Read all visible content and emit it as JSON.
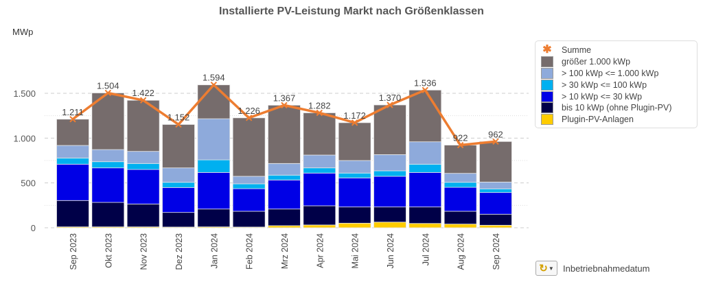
{
  "chart_data": {
    "type": "bar",
    "stacked": true,
    "title": "Installierte PV-Leistung Markt nach Größenklassen",
    "ylabel": "MWp",
    "xlabel": "Inbetriebnahmedatum",
    "ylim": [
      0,
      1700
    ],
    "yticks": [
      0,
      500,
      1000,
      1500
    ],
    "ytick_labels": [
      "0",
      "500",
      "1.000",
      "1.500"
    ],
    "grid": true,
    "legend_position": "right",
    "categories": [
      "Sep 2023",
      "Okt 2023",
      "Nov 2023",
      "Dez 2023",
      "Jan 2024",
      "Feb 2024",
      "Mrz 2024",
      "Apr 2024",
      "Mai 2024",
      "Jun 2024",
      "Jul 2024",
      "Aug 2024",
      "Sep 2024"
    ],
    "series": [
      {
        "name": "Plugin-PV-Anlagen",
        "color": "#ffcc00",
        "values": [
          10,
          10,
          10,
          8,
          10,
          8,
          23,
          31,
          51,
          63,
          48,
          41,
          28
        ]
      },
      {
        "name": "bis 10 kWp (ohne Plugin-PV)",
        "color": "#000048",
        "values": [
          294,
          273,
          255,
          163,
          199,
          176,
          186,
          214,
          181,
          169,
          184,
          143,
          123
        ]
      },
      {
        "name": "> 10 kWp <= 30 kWp",
        "color": "#0000e6",
        "values": [
          405,
          385,
          385,
          278,
          408,
          252,
          324,
          365,
          324,
          342,
          385,
          267,
          242
        ]
      },
      {
        "name": "> 30 kWp <= 100 kWp",
        "color": "#00b0f0",
        "values": [
          69,
          69,
          67,
          58,
          140,
          54,
          54,
          58,
          54,
          61,
          92,
          56,
          41
        ]
      },
      {
        "name": "> 100 kWp <= 1.000 kWp",
        "color": "#8eaadb",
        "values": [
          140,
          135,
          135,
          161,
          459,
          84,
          130,
          143,
          140,
          181,
          250,
          100,
          76
        ]
      },
      {
        "name": "größer 1.000 kWp",
        "color": "#766c6c",
        "values": [
          293,
          632,
          570,
          484,
          378,
          652,
          650,
          471,
          422,
          554,
          577,
          315,
          452
        ]
      }
    ],
    "line": {
      "name": "Summe",
      "color": "#ed7d31",
      "values": [
        1211,
        1504,
        1422,
        1152,
        1594,
        1226,
        1367,
        1282,
        1172,
        1370,
        1536,
        922,
        962
      ],
      "labels": [
        "1.211",
        "1.504",
        "1.422",
        "1.152",
        "1.594",
        "1.226",
        "1.367",
        "1.282",
        "1.172",
        "1.370",
        "1.536",
        "922",
        "962"
      ]
    }
  },
  "legend": [
    "Summe",
    "größer 1.000 kWp",
    "> 100 kWp <= 1.000 kWp",
    "> 30 kWp <= 100 kWp",
    "> 10 kWp <= 30 kWp",
    "bis 10 kWp (ohne Plugin-PV)",
    "Plugin-PV-Anlagen"
  ],
  "footer": {
    "dropdown_icon": "cycle-arrow-icon",
    "label": "Inbetriebnahmedatum"
  }
}
